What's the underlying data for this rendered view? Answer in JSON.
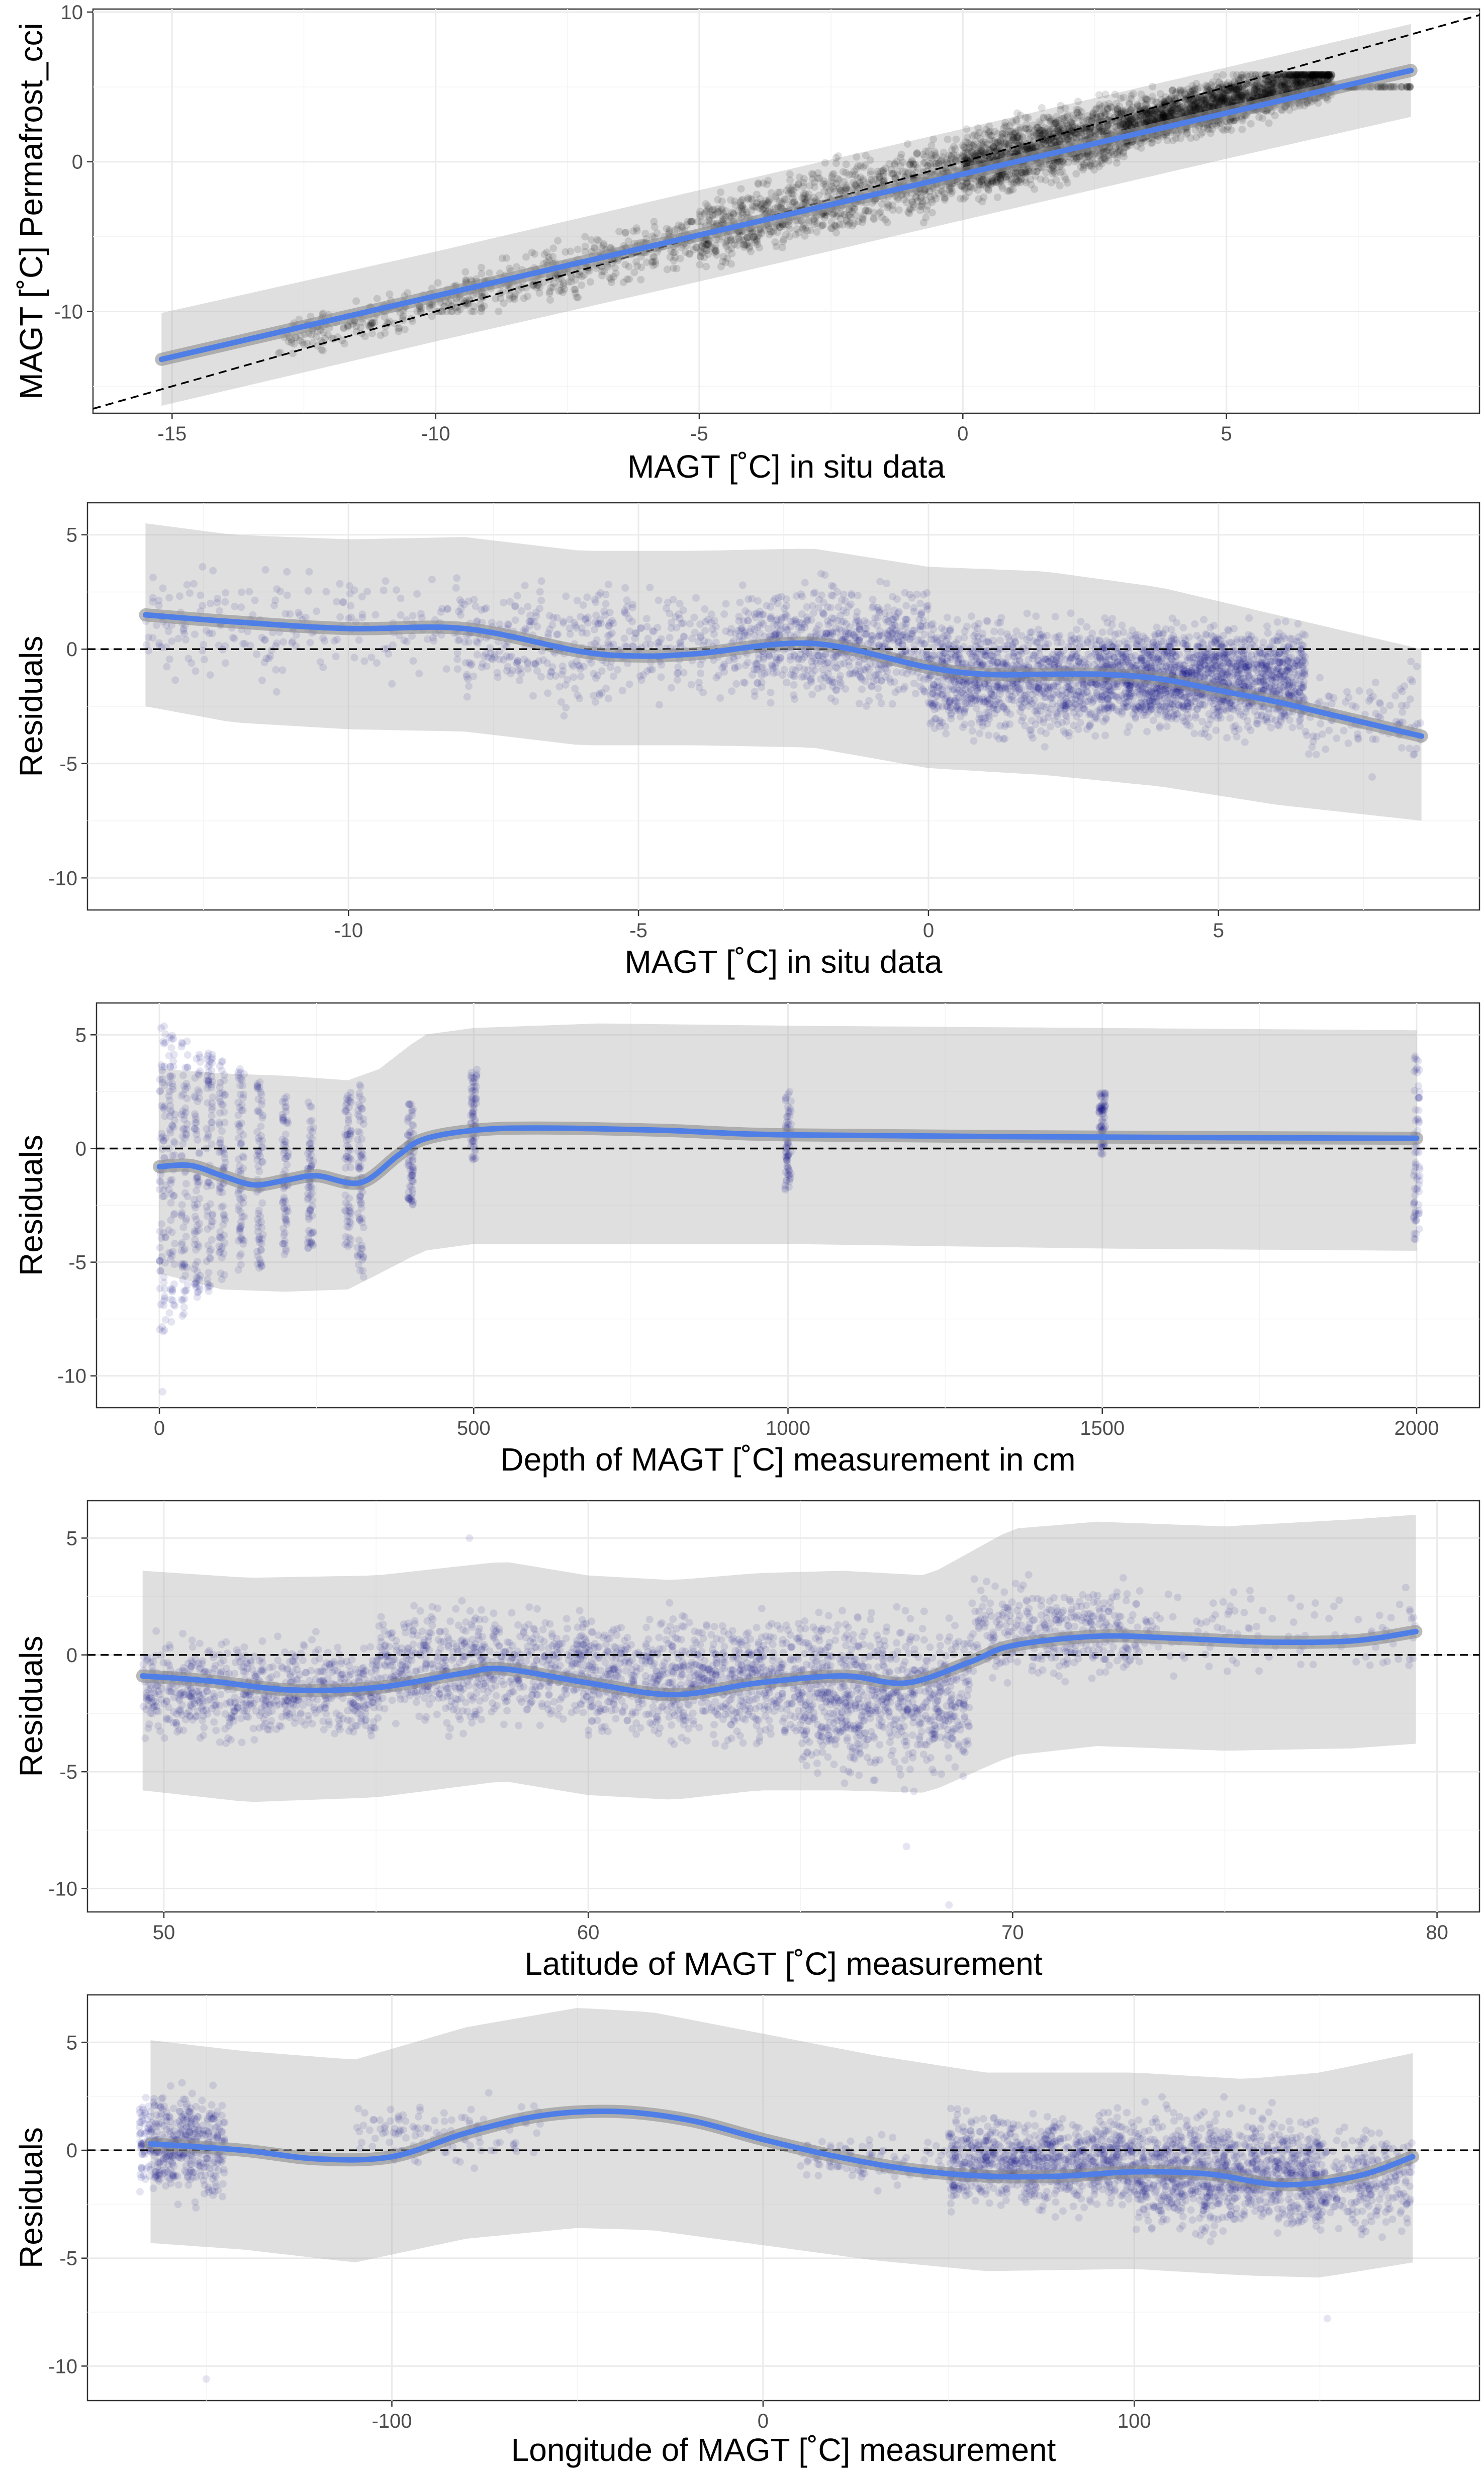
{
  "chart_data": [
    {
      "type": "scatter",
      "xlabel": "MAGT [˚C] in situ data",
      "ylabel": "MAGT [˚C] Permafrost_cci",
      "xlim": [
        -16.5,
        9.8
      ],
      "ylim": [
        -16.8,
        10.2
      ],
      "xticks": [
        -15,
        -10,
        -5,
        0,
        5
      ],
      "yticks": [
        -10,
        0,
        10
      ],
      "grid": true,
      "point_color": "#000000",
      "reference_line": {
        "type": "identity",
        "style": "dashed",
        "color": "#000000"
      },
      "fit": {
        "color": "#4f7fe6",
        "x": [
          -15.2,
          8.5
        ],
        "y": [
          -13.2,
          6.1
        ]
      },
      "band": {
        "x": [
          -15.2,
          -10,
          -5,
          0,
          5,
          8.5
        ],
        "lower": [
          -16.3,
          -12.0,
          -8.0,
          -3.9,
          0.2,
          3.0
        ],
        "upper": [
          -10.1,
          -6.0,
          -1.9,
          2.2,
          6.3,
          9.2
        ]
      },
      "point_density": [
        {
          "x": [
            -13,
            -10
          ],
          "y": [
            -12.8,
            -8.2
          ],
          "n": 160
        },
        {
          "x": [
            -10,
            -5
          ],
          "y": [
            -10.0,
            -4.0
          ],
          "n": 420
        },
        {
          "x": [
            -5,
            0
          ],
          "y": [
            -7.0,
            1.5
          ],
          "n": 900
        },
        {
          "x": [
            0,
            3
          ],
          "y": [
            -3.5,
            4.5
          ],
          "n": 1200
        },
        {
          "x": [
            3,
            7
          ],
          "y": [
            0.0,
            5.8
          ],
          "n": 1800
        },
        {
          "x": [
            7,
            8.5
          ],
          "y": [
            -2.5,
            5.0
          ],
          "n": 60
        }
      ]
    },
    {
      "type": "scatter",
      "xlabel": "MAGT [˚C] in situ data",
      "ylabel": "Residuals",
      "xlim": [
        -14.5,
        9.5
      ],
      "ylim": [
        -11.4,
        6.4
      ],
      "xticks": [
        -10,
        -5,
        0,
        5
      ],
      "yticks": [
        -10,
        -5,
        0,
        5
      ],
      "grid": true,
      "point_color": "#000080",
      "reference_line": {
        "type": "horizontal",
        "y": 0,
        "style": "dashed",
        "color": "#000000"
      },
      "fit": {
        "color": "#4f7fe6",
        "x": [
          -13.5,
          -12,
          -10,
          -8,
          -6,
          -5,
          -4,
          -2,
          0,
          1,
          2,
          3,
          4,
          5,
          6,
          7,
          8.5
        ],
        "y": [
          1.5,
          1.2,
          0.9,
          0.9,
          -0.1,
          -0.3,
          -0.2,
          0.25,
          -0.8,
          -1.1,
          -1.1,
          -1.1,
          -1.3,
          -1.8,
          -2.3,
          -2.9,
          -3.8
        ]
      },
      "band": {
        "x": [
          -13.5,
          -12,
          -10,
          -8,
          -6,
          -4,
          -2,
          0,
          2,
          4,
          6,
          8.5
        ],
        "lower": [
          -2.5,
          -3.2,
          -3.5,
          -3.6,
          -4.2,
          -4.2,
          -4.3,
          -5.2,
          -5.5,
          -6.0,
          -6.8,
          -7.5
        ],
        "upper": [
          5.5,
          5.0,
          4.8,
          4.9,
          4.3,
          4.3,
          4.4,
          3.6,
          3.4,
          2.7,
          1.5,
          0.0
        ]
      },
      "point_density": [
        {
          "x": [
            -13.5,
            -8
          ],
          "y": [
            -3,
            5
          ],
          "n": 220
        },
        {
          "x": [
            -8,
            -3
          ],
          "y": [
            -4,
            4.5
          ],
          "n": 450
        },
        {
          "x": [
            -3,
            0
          ],
          "y": [
            -4,
            4.5
          ],
          "n": 650
        },
        {
          "x": [
            0,
            3
          ],
          "y": [
            -5.5,
            3
          ],
          "n": 1000
        },
        {
          "x": [
            3,
            6.5
          ],
          "y": [
            -5,
            2.5
          ],
          "n": 1600
        },
        {
          "x": [
            6.5,
            8.5
          ],
          "y": [
            -6.5,
            0.5
          ],
          "n": 100
        }
      ]
    },
    {
      "type": "scatter",
      "xlabel": "Depth of MAGT [˚C] measurement in cm",
      "ylabel": "Residuals",
      "xlim": [
        -100,
        2100
      ],
      "ylim": [
        -11.4,
        6.4
      ],
      "xticks": [
        0,
        500,
        1000,
        1500,
        2000
      ],
      "yticks": [
        -10,
        -5,
        0,
        5
      ],
      "grid": true,
      "point_color": "#000080",
      "reference_line": {
        "type": "horizontal",
        "y": 0,
        "style": "dashed",
        "color": "#000000"
      },
      "fit": {
        "color": "#4f7fe6",
        "x": [
          0,
          50,
          100,
          150,
          200,
          250,
          320,
          380,
          420,
          500,
          600,
          800,
          1000,
          1500,
          2000
        ],
        "y": [
          -0.8,
          -0.75,
          -1.2,
          -1.6,
          -1.4,
          -1.2,
          -1.5,
          -0.3,
          0.4,
          0.8,
          0.9,
          0.8,
          0.6,
          0.5,
          0.45
        ]
      },
      "band": {
        "x": [
          0,
          100,
          200,
          300,
          350,
          420,
          500,
          700,
          1000,
          1500,
          2000
        ],
        "lower": [
          -5.5,
          -6.2,
          -6.3,
          -6.2,
          -5.5,
          -4.5,
          -4.2,
          -4.2,
          -4.2,
          -4.4,
          -4.5
        ],
        "upper": [
          3.5,
          3.3,
          3.2,
          3.0,
          3.5,
          5.0,
          5.3,
          5.5,
          5.4,
          5.3,
          5.2
        ]
      },
      "depth_columns": [
        {
          "x": 5,
          "y": [
            -8.3,
            5.5
          ]
        },
        {
          "x": 20,
          "y": [
            -8.0,
            5.0
          ]
        },
        {
          "x": 40,
          "y": [
            -7.6,
            4.8
          ]
        },
        {
          "x": 60,
          "y": [
            -6.8,
            4.5
          ]
        },
        {
          "x": 80,
          "y": [
            -6.3,
            4.2
          ]
        },
        {
          "x": 100,
          "y": [
            -5.8,
            4.0
          ]
        },
        {
          "x": 130,
          "y": [
            -5.5,
            3.5
          ]
        },
        {
          "x": 160,
          "y": [
            -5.3,
            3.0
          ]
        },
        {
          "x": 200,
          "y": [
            -4.8,
            2.5
          ]
        },
        {
          "x": 240,
          "y": [
            -4.5,
            2.3
          ]
        },
        {
          "x": 300,
          "y": [
            -4.5,
            2.5
          ]
        },
        {
          "x": 320,
          "y": [
            -6.0,
            2.8
          ]
        },
        {
          "x": 400,
          "y": [
            -2.5,
            2.0
          ]
        },
        {
          "x": 500,
          "y": [
            -0.5,
            3.5
          ]
        },
        {
          "x": 1000,
          "y": [
            -2.0,
            2.5
          ]
        },
        {
          "x": 1500,
          "y": [
            -0.3,
            2.5
          ]
        },
        {
          "x": 2000,
          "y": [
            -4.0,
            4.2
          ]
        }
      ],
      "outliers": [
        {
          "x": 5,
          "y": -10.7
        }
      ]
    },
    {
      "type": "scatter",
      "xlabel": "Latitude of MAGT [˚C] measurement",
      "ylabel": "Residuals",
      "xlim": [
        48.2,
        81.0
      ],
      "ylim": [
        -11.0,
        6.6
      ],
      "xticks": [
        50,
        60,
        70,
        80
      ],
      "yticks": [
        -10,
        -5,
        0,
        5
      ],
      "grid": true,
      "point_color": "#000080",
      "reference_line": {
        "type": "horizontal",
        "y": 0,
        "style": "dashed",
        "color": "#000000"
      },
      "fit": {
        "color": "#4f7fe6",
        "x": [
          49.5,
          51,
          53,
          55,
          57,
          58,
          60,
          62,
          64,
          66,
          67.5,
          69,
          70,
          72,
          74,
          76,
          78,
          79.5
        ],
        "y": [
          -0.9,
          -1.1,
          -1.5,
          -1.4,
          -0.8,
          -0.6,
          -1.2,
          -1.7,
          -1.2,
          -0.9,
          -1.2,
          -0.3,
          0.4,
          0.8,
          0.7,
          0.55,
          0.6,
          1.0
        ]
      },
      "band": {
        "x": [
          49.5,
          52,
          55,
          58,
          60,
          62,
          64,
          66,
          68,
          70,
          72,
          75,
          78,
          79.5
        ],
        "lower": [
          -5.8,
          -6.3,
          -6.1,
          -5.4,
          -6.0,
          -6.2,
          -5.8,
          -5.8,
          -5.9,
          -4.3,
          -3.9,
          -4.1,
          -4.0,
          -3.8
        ],
        "upper": [
          3.6,
          3.3,
          3.4,
          4.0,
          3.4,
          3.2,
          3.5,
          3.6,
          3.4,
          5.4,
          5.7,
          5.5,
          5.8,
          6.0
        ]
      },
      "point_density": [
        {
          "x": [
            49.5,
            55
          ],
          "y": [
            -5,
            2
          ],
          "n": 700
        },
        {
          "x": [
            55,
            60
          ],
          "y": [
            -4.5,
            3.5
          ],
          "n": 700
        },
        {
          "x": [
            60,
            65
          ],
          "y": [
            -5.5,
            3.5
          ],
          "n": 800
        },
        {
          "x": [
            65,
            69
          ],
          "y": [
            -7.5,
            4
          ],
          "n": 800
        },
        {
          "x": [
            69,
            73
          ],
          "y": [
            -2.5,
            4.5
          ],
          "n": 350
        },
        {
          "x": [
            73,
            79.5
          ],
          "y": [
            -2,
            4
          ],
          "n": 120
        }
      ],
      "outliers": [
        {
          "x": 67.5,
          "y": -8.2
        },
        {
          "x": 68.5,
          "y": -10.7
        },
        {
          "x": 57.2,
          "y": 5.0
        }
      ]
    },
    {
      "type": "scatter",
      "xlabel": "Longitude of MAGT [˚C] measurement",
      "ylabel": "Residuals",
      "xlim": [
        -182,
        193
      ],
      "ylim": [
        -11.6,
        7.2
      ],
      "xticks": [
        -100,
        0,
        100
      ],
      "yticks": [
        -10,
        -5,
        0,
        5
      ],
      "grid": true,
      "point_color": "#000080",
      "reference_line": {
        "type": "horizontal",
        "y": 0,
        "style": "dashed",
        "color": "#000000"
      },
      "fit": {
        "color": "#4f7fe6",
        "x": [
          -165,
          -140,
          -120,
          -100,
          -80,
          -60,
          -40,
          -20,
          0,
          20,
          40,
          60,
          80,
          100,
          120,
          140,
          160,
          175
        ],
        "y": [
          0.3,
          0.0,
          -0.4,
          -0.3,
          0.8,
          1.6,
          1.8,
          1.4,
          0.5,
          -0.3,
          -0.9,
          -1.2,
          -1.2,
          -1.0,
          -1.1,
          -1.6,
          -1.2,
          -0.3
        ]
      },
      "band": {
        "x": [
          -165,
          -140,
          -110,
          -80,
          -50,
          -30,
          0,
          30,
          60,
          100,
          130,
          150,
          175
        ],
        "lower": [
          -4.3,
          -4.6,
          -5.2,
          -4.1,
          -3.6,
          -3.7,
          -4.4,
          -5.1,
          -5.6,
          -5.5,
          -5.8,
          -5.9,
          -5.2
        ],
        "upper": [
          5.1,
          4.6,
          4.2,
          5.7,
          6.6,
          6.4,
          5.4,
          4.4,
          3.6,
          3.6,
          3.3,
          3.6,
          4.5
        ]
      },
      "point_density": [
        {
          "x": [
            -168,
            -145
          ],
          "y": [
            -4,
            4.5
          ],
          "n": 450
        },
        {
          "x": [
            -110,
            -60
          ],
          "y": [
            -2,
            3.5
          ],
          "n": 120
        },
        {
          "x": [
            10,
            50
          ],
          "y": [
            -2.5,
            1.5
          ],
          "n": 90
        },
        {
          "x": [
            50,
            100
          ],
          "y": [
            -4,
            3
          ],
          "n": 900
        },
        {
          "x": [
            100,
            150
          ],
          "y": [
            -5.5,
            3.5
          ],
          "n": 1000
        },
        {
          "x": [
            150,
            175
          ],
          "y": [
            -5.5,
            2.5
          ],
          "n": 250
        }
      ],
      "outliers": [
        {
          "x": -150,
          "y": -10.6
        },
        {
          "x": 152,
          "y": -7.8
        }
      ]
    }
  ]
}
